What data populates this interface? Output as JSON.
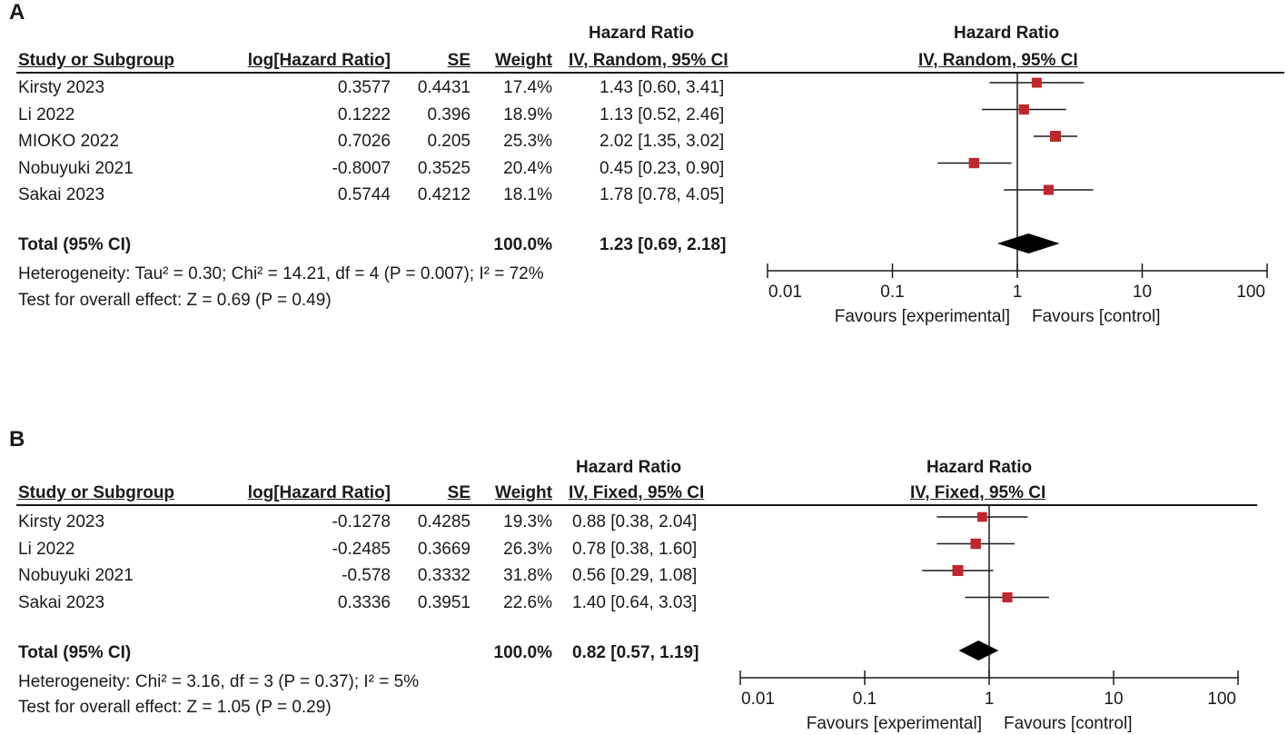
{
  "colors": {
    "marker": "#c0272d",
    "line": "#1a1a1a",
    "diamond": "#000000"
  },
  "chart_data": [
    {
      "panel_label": "A",
      "type": "forest",
      "columns": {
        "study": "Study or Subgroup",
        "log_hr": "log[Hazard Ratio]",
        "se": "SE",
        "weight": "Weight",
        "ratio_top": "Hazard Ratio",
        "ratio_method": "IV, Random, 95% CI",
        "plot_top": "Hazard Ratio",
        "plot_method": "IV, Random, 95% CI"
      },
      "studies": [
        {
          "name": "Kirsty 2023",
          "log_hr": "0.3577",
          "se": "0.4431",
          "weight": "17.4%",
          "ci_text": "1.43 [0.60, 3.41]",
          "hr": 1.43,
          "lo": 0.6,
          "hi": 3.41,
          "w": 17.4
        },
        {
          "name": "Li 2022",
          "log_hr": "0.1222",
          "se": "0.396",
          "weight": "18.9%",
          "ci_text": "1.13 [0.52, 2.46]",
          "hr": 1.13,
          "lo": 0.52,
          "hi": 2.46,
          "w": 18.9
        },
        {
          "name": "MIOKO 2022",
          "log_hr": "0.7026",
          "se": "0.205",
          "weight": "25.3%",
          "ci_text": "2.02 [1.35, 3.02]",
          "hr": 2.02,
          "lo": 1.35,
          "hi": 3.02,
          "w": 25.3
        },
        {
          "name": "Nobuyuki 2021",
          "log_hr": "-0.8007",
          "se": "0.3525",
          "weight": "20.4%",
          "ci_text": "0.45 [0.23, 0.90]",
          "hr": 0.45,
          "lo": 0.23,
          "hi": 0.9,
          "w": 20.4
        },
        {
          "name": "Sakai 2023",
          "log_hr": "0.5744",
          "se": "0.4212",
          "weight": "18.1%",
          "ci_text": "1.78 [0.78, 4.05]",
          "hr": 1.78,
          "lo": 0.78,
          "hi": 4.05,
          "w": 18.1
        }
      ],
      "total": {
        "label": "Total (95% CI)",
        "weight": "100.0%",
        "ci_text": "1.23 [0.69, 2.18]",
        "hr": 1.23,
        "lo": 0.69,
        "hi": 2.18
      },
      "heterogeneity": "Heterogeneity: Tau² = 0.30; Chi² = 14.21, df = 4 (P = 0.007); I² = 72%",
      "overall_effect": "Test for overall effect: Z = 0.69 (P = 0.49)",
      "axis": {
        "scale": "log",
        "range": [
          0.01,
          100
        ],
        "ticks": [
          "0.01",
          "0.1",
          "1",
          "10",
          "100"
        ],
        "tick_values": [
          0.01,
          0.1,
          1,
          10,
          100
        ],
        "left_label": "Favours [experimental]",
        "right_label": "Favours [control]"
      }
    },
    {
      "panel_label": "B",
      "type": "forest",
      "columns": {
        "study": "Study or Subgroup",
        "log_hr": "log[Hazard Ratio]",
        "se": "SE",
        "weight": "Weight",
        "ratio_top": "Hazard Ratio",
        "ratio_method": "IV, Fixed, 95% CI",
        "plot_top": "Hazard Ratio",
        "plot_method": "IV, Fixed, 95% CI"
      },
      "studies": [
        {
          "name": "Kirsty 2023",
          "log_hr": "-0.1278",
          "se": "0.4285",
          "weight": "19.3%",
          "ci_text": "0.88 [0.38, 2.04]",
          "hr": 0.88,
          "lo": 0.38,
          "hi": 2.04,
          "w": 19.3
        },
        {
          "name": "Li 2022",
          "log_hr": "-0.2485",
          "se": "0.3669",
          "weight": "26.3%",
          "ci_text": "0.78 [0.38, 1.60]",
          "hr": 0.78,
          "lo": 0.38,
          "hi": 1.6,
          "w": 26.3
        },
        {
          "name": "Nobuyuki 2021",
          "log_hr": "-0.578",
          "se": "0.3332",
          "weight": "31.8%",
          "ci_text": "0.56 [0.29, 1.08]",
          "hr": 0.56,
          "lo": 0.29,
          "hi": 1.08,
          "w": 31.8
        },
        {
          "name": "Sakai 2023",
          "log_hr": "0.3336",
          "se": "0.3951",
          "weight": "22.6%",
          "ci_text": "1.40 [0.64, 3.03]",
          "hr": 1.4,
          "lo": 0.64,
          "hi": 3.03,
          "w": 22.6
        }
      ],
      "total": {
        "label": "Total (95% CI)",
        "weight": "100.0%",
        "ci_text": "0.82 [0.57, 1.19]",
        "hr": 0.82,
        "lo": 0.57,
        "hi": 1.19
      },
      "heterogeneity": "Heterogeneity: Chi² = 3.16, df = 3 (P = 0.37); I² = 5%",
      "overall_effect": "Test for overall effect: Z = 1.05 (P = 0.29)",
      "axis": {
        "scale": "log",
        "range": [
          0.01,
          100
        ],
        "ticks": [
          "0.01",
          "0.1",
          "1",
          "10",
          "100"
        ],
        "tick_values": [
          0.01,
          0.1,
          1,
          10,
          100
        ],
        "left_label": "Favours [experimental]",
        "right_label": "Favours [control]"
      }
    }
  ]
}
